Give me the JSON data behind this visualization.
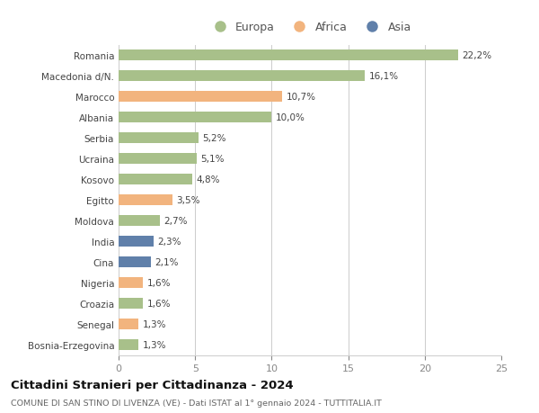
{
  "countries": [
    "Romania",
    "Macedonia d/N.",
    "Marocco",
    "Albania",
    "Serbia",
    "Ucraina",
    "Kosovo",
    "Egitto",
    "Moldova",
    "India",
    "Cina",
    "Nigeria",
    "Croazia",
    "Senegal",
    "Bosnia-Erzegovina"
  ],
  "values": [
    22.2,
    16.1,
    10.7,
    10.0,
    5.2,
    5.1,
    4.8,
    3.5,
    2.7,
    2.3,
    2.1,
    1.6,
    1.6,
    1.3,
    1.3
  ],
  "labels": [
    "22,2%",
    "16,1%",
    "10,7%",
    "10,0%",
    "5,2%",
    "5,1%",
    "4,8%",
    "3,5%",
    "2,7%",
    "2,3%",
    "2,1%",
    "1,6%",
    "1,6%",
    "1,3%",
    "1,3%"
  ],
  "continents": [
    "Europa",
    "Europa",
    "Africa",
    "Europa",
    "Europa",
    "Europa",
    "Europa",
    "Africa",
    "Europa",
    "Asia",
    "Asia",
    "Africa",
    "Europa",
    "Africa",
    "Europa"
  ],
  "colors": {
    "Europa": "#a8c08a",
    "Africa": "#f2b47e",
    "Asia": "#6080aa"
  },
  "xlim": [
    0,
    25
  ],
  "xticks": [
    0,
    5,
    10,
    15,
    20,
    25
  ],
  "title_main": "Cittadini Stranieri per Cittadinanza - 2024",
  "title_sub": "COMUNE DI SAN STINO DI LIVENZA (VE) - Dati ISTAT al 1° gennaio 2024 - TUTTITALIA.IT",
  "background_color": "#ffffff",
  "grid_color": "#cccccc",
  "bar_height": 0.55
}
